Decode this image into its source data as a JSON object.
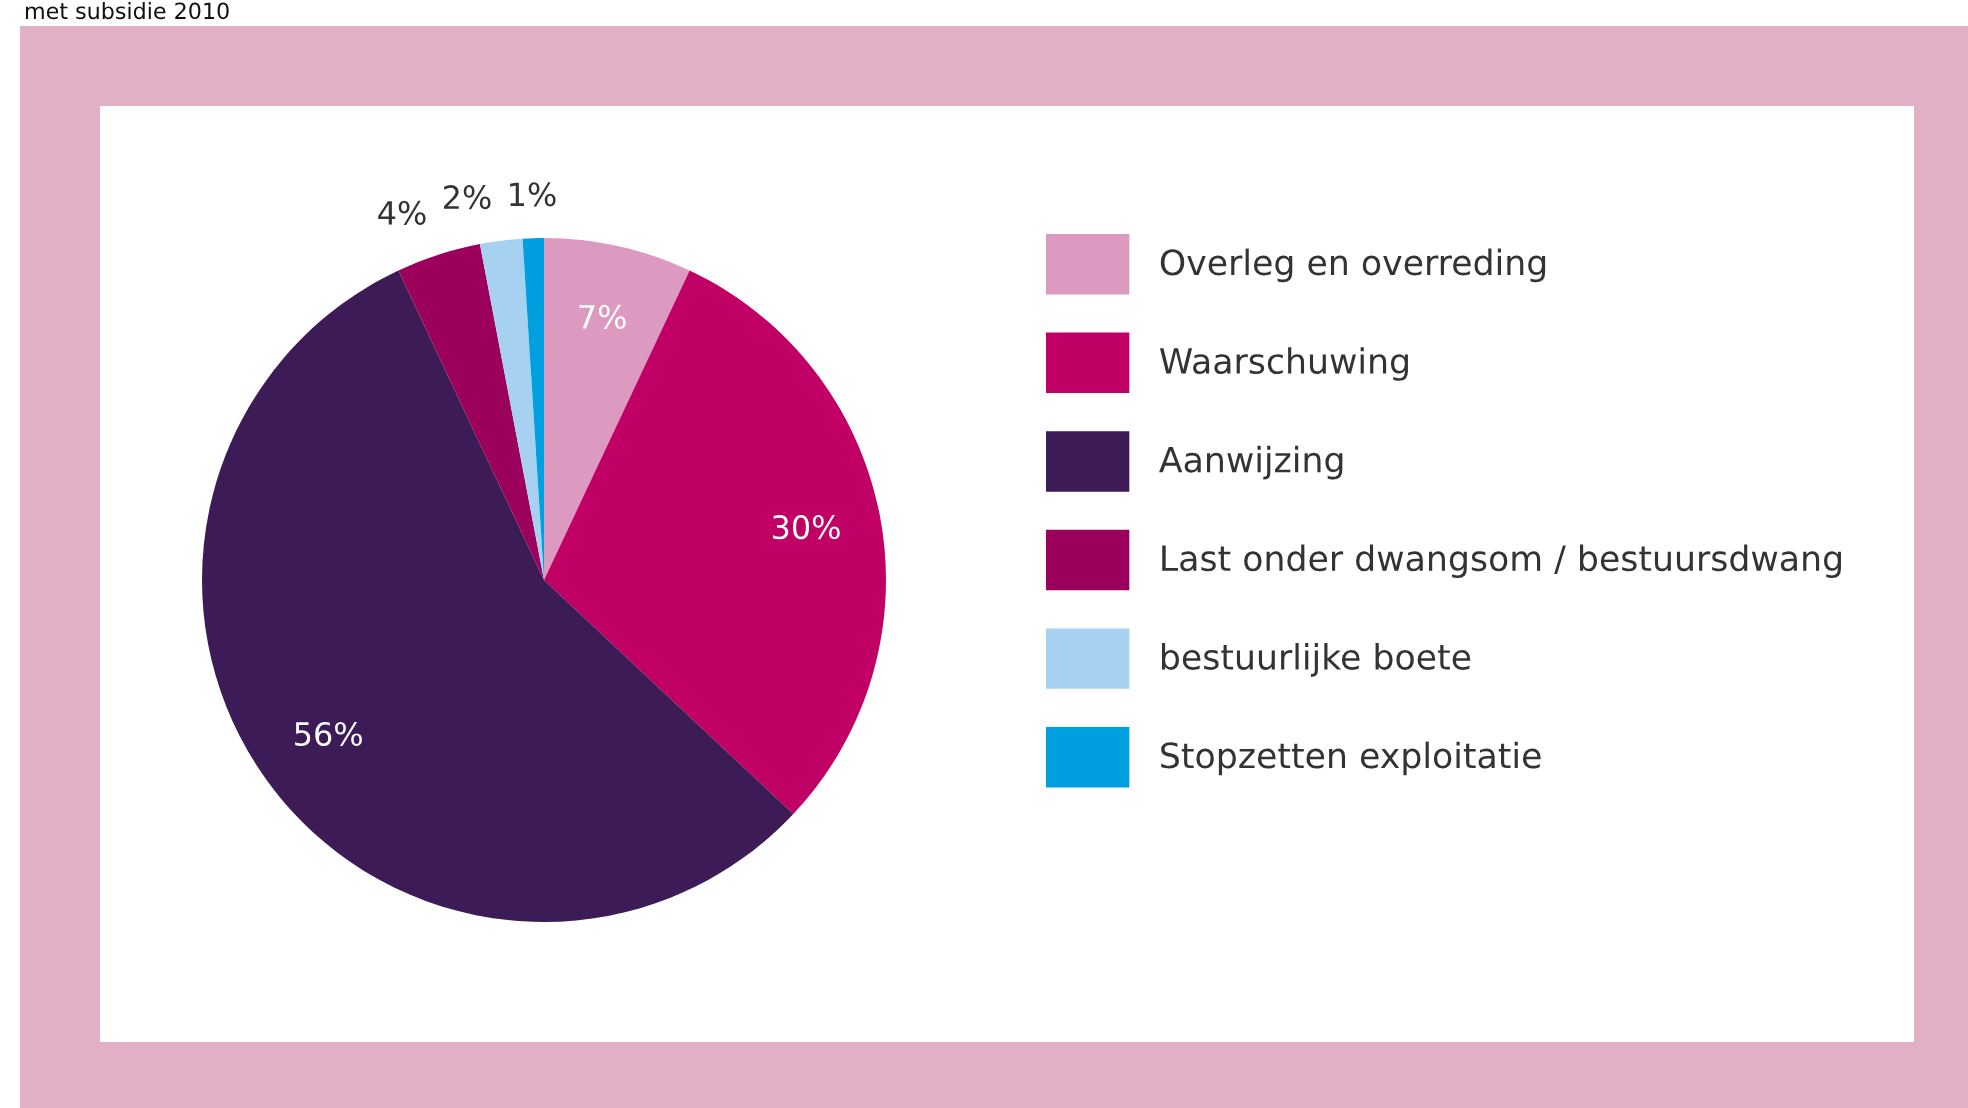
{
  "chart_data": {
    "type": "pie",
    "title": "met subsidie 2010",
    "categories": [
      "Overleg en overreding",
      "Waarschuwing",
      "Aanwijzing",
      "Last onder dwangsom / bestuursdwang",
      "bestuurlijke boete",
      "Stopzetten exploitatie"
    ],
    "values": [
      7,
      30,
      56,
      4,
      2,
      1
    ],
    "colors": [
      "#dc9ac0",
      "#c10065",
      "#3c1b56",
      "#9b005d",
      "#a6d1f0",
      "#009fe0"
    ],
    "value_labels": [
      "7%",
      "30%",
      "56%",
      "4%",
      "2%",
      "1%"
    ],
    "legend": "right"
  }
}
